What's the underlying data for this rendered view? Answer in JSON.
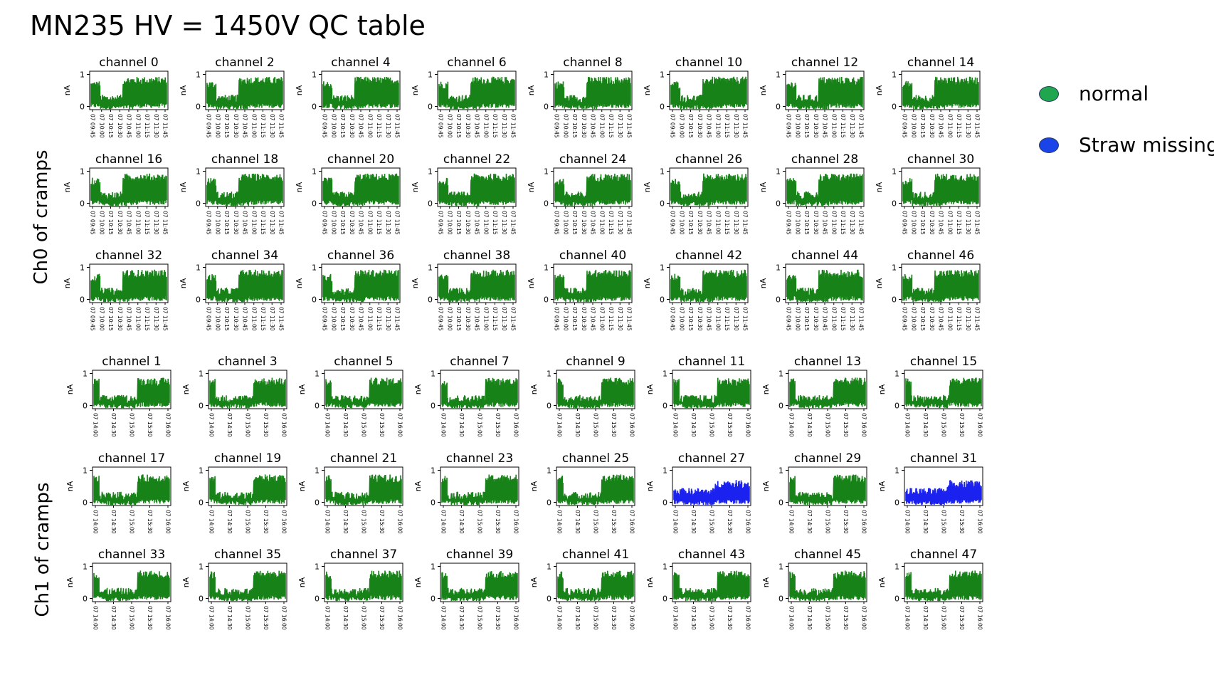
{
  "title": "MN235 HV = 1450V QC table",
  "group_labels": {
    "ch0": "Ch0 of cramps",
    "ch1": "Ch1 of cramps"
  },
  "legend": [
    {
      "label": "normal",
      "color": "#21a650"
    },
    {
      "label": "Straw missing",
      "color": "#1a44e8"
    }
  ],
  "colors": {
    "normal": "#178217",
    "missing": "#1b22f0"
  },
  "chart_data": [
    {
      "type": "line",
      "group": "Ch0 of cramps",
      "ylabel": "nA",
      "yticks": [
        "0",
        "1"
      ],
      "ylim": [
        -0.1,
        1.1
      ],
      "xticks": [
        "07 09:45",
        "07 10:00",
        "07 10:15",
        "07 10:30",
        "07 10:45",
        "07 11:00",
        "07 11:15",
        "07 11:30",
        "07 11:45"
      ],
      "panels": [
        {
          "title": "channel 0",
          "status": "normal"
        },
        {
          "title": "channel 2",
          "status": "normal"
        },
        {
          "title": "channel 4",
          "status": "normal"
        },
        {
          "title": "channel 6",
          "status": "normal"
        },
        {
          "title": "channel 8",
          "status": "normal"
        },
        {
          "title": "channel 10",
          "status": "normal"
        },
        {
          "title": "channel 12",
          "status": "normal"
        },
        {
          "title": "channel 14",
          "status": "normal"
        },
        {
          "title": "channel 16",
          "status": "normal"
        },
        {
          "title": "channel 18",
          "status": "normal"
        },
        {
          "title": "channel 20",
          "status": "normal"
        },
        {
          "title": "channel 22",
          "status": "normal"
        },
        {
          "title": "channel 24",
          "status": "normal"
        },
        {
          "title": "channel 26",
          "status": "normal"
        },
        {
          "title": "channel 28",
          "status": "normal"
        },
        {
          "title": "channel 30",
          "status": "normal"
        },
        {
          "title": "channel 32",
          "status": "normal"
        },
        {
          "title": "channel 34",
          "status": "normal"
        },
        {
          "title": "channel 36",
          "status": "normal"
        },
        {
          "title": "channel 38",
          "status": "normal"
        },
        {
          "title": "channel 40",
          "status": "normal"
        },
        {
          "title": "channel 42",
          "status": "normal"
        },
        {
          "title": "channel 44",
          "status": "normal"
        },
        {
          "title": "channel 46",
          "status": "normal"
        }
      ]
    },
    {
      "type": "line",
      "group": "Ch1 of cramps",
      "ylabel": "nA",
      "yticks": [
        "0",
        "1"
      ],
      "ylim": [
        -0.1,
        1.1
      ],
      "xticks": [
        "07 14:00",
        "07 14:30",
        "07 15:00",
        "07 15:30",
        "07 16:00"
      ],
      "panels": [
        {
          "title": "channel 1",
          "status": "normal"
        },
        {
          "title": "channel 3",
          "status": "normal"
        },
        {
          "title": "channel 5",
          "status": "normal"
        },
        {
          "title": "channel 7",
          "status": "normal"
        },
        {
          "title": "channel 9",
          "status": "normal"
        },
        {
          "title": "channel 11",
          "status": "normal"
        },
        {
          "title": "channel 13",
          "status": "normal"
        },
        {
          "title": "channel 15",
          "status": "normal"
        },
        {
          "title": "channel 17",
          "status": "normal"
        },
        {
          "title": "channel 19",
          "status": "normal"
        },
        {
          "title": "channel 21",
          "status": "normal"
        },
        {
          "title": "channel 23",
          "status": "normal"
        },
        {
          "title": "channel 25",
          "status": "normal"
        },
        {
          "title": "channel 27",
          "status": "missing"
        },
        {
          "title": "channel 29",
          "status": "normal"
        },
        {
          "title": "channel 31",
          "status": "missing"
        },
        {
          "title": "channel 33",
          "status": "normal"
        },
        {
          "title": "channel 35",
          "status": "normal"
        },
        {
          "title": "channel 37",
          "status": "normal"
        },
        {
          "title": "channel 39",
          "status": "normal"
        },
        {
          "title": "channel 41",
          "status": "normal"
        },
        {
          "title": "channel 43",
          "status": "normal"
        },
        {
          "title": "channel 45",
          "status": "normal"
        },
        {
          "title": "channel 47",
          "status": "normal"
        }
      ]
    }
  ]
}
